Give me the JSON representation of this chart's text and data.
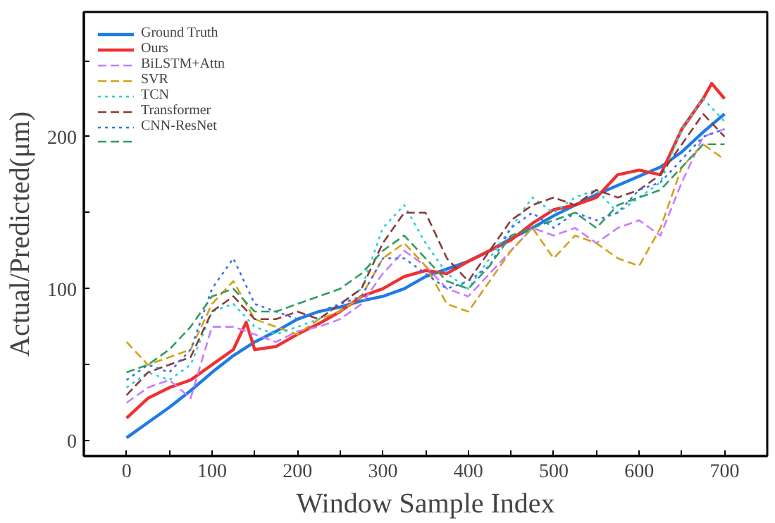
{
  "chart_data": {
    "type": "line",
    "xlabel": "Window Sample Index",
    "ylabel": "Actual/Predicted(μm)",
    "x": [
      0,
      25,
      50,
      75,
      100,
      125,
      150,
      175,
      200,
      225,
      250,
      275,
      300,
      325,
      350,
      375,
      400,
      425,
      450,
      475,
      500,
      525,
      550,
      575,
      600,
      625,
      650,
      675,
      700
    ],
    "xlim": [
      -50,
      750
    ],
    "ylim": [
      -10,
      282
    ],
    "xticks": [
      0,
      {
        "value": 50,
        "label": null
      },
      100,
      {
        "value": 150,
        "label": null
      },
      200,
      {
        "value": 250,
        "label": null
      },
      300,
      {
        "value": 350,
        "label": null
      },
      400,
      {
        "value": 450,
        "label": null
      },
      500,
      {
        "value": 550,
        "label": null
      },
      600,
      {
        "value": 650,
        "label": null
      },
      700
    ],
    "yticks": [
      0,
      {
        "value": 50,
        "label": null
      },
      100,
      {
        "value": 150,
        "label": null
      },
      200,
      {
        "value": 250,
        "label": null
      }
    ],
    "grid": false,
    "legend": "top left",
    "marker": "none",
    "series": [
      {
        "name": "Ground Truth",
        "color": "#1e7be6",
        "line_style": "solid",
        "values": [
          2,
          12,
          22,
          33,
          45,
          56,
          65,
          72,
          80,
          85,
          88,
          92,
          95,
          100,
          108,
          113,
          118,
          125,
          133,
          140,
          148,
          155,
          162,
          168,
          174,
          180,
          190,
          203,
          215
        ]
      },
      {
        "name": "Ours",
        "color": "#f03030",
        "line_style": "solid",
        "x": [
          0,
          25,
          50,
          75,
          100,
          125,
          140,
          150,
          175,
          200,
          225,
          250,
          275,
          300,
          325,
          350,
          375,
          400,
          425,
          450,
          475,
          500,
          525,
          550,
          575,
          600,
          625,
          650,
          675,
          685,
          700
        ],
        "values": [
          15,
          28,
          35,
          40,
          50,
          60,
          78,
          60,
          62,
          70,
          77,
          85,
          95,
          100,
          108,
          112,
          110,
          118,
          125,
          132,
          143,
          152,
          155,
          160,
          175,
          178,
          175,
          205,
          225,
          235,
          225
        ]
      },
      {
        "name": "BiLSTM+Attn",
        "color": "#c77dff",
        "line_style": "dashed",
        "values": [
          25,
          35,
          40,
          28,
          75,
          75,
          70,
          65,
          72,
          75,
          80,
          90,
          110,
          125,
          115,
          100,
          95,
          110,
          125,
          140,
          135,
          140,
          130,
          140,
          145,
          135,
          170,
          200,
          205
        ]
      },
      {
        "name": "SVR",
        "color": "#d4a017",
        "line_style": "dashed",
        "values": [
          65,
          50,
          55,
          60,
          90,
          105,
          80,
          75,
          70,
          80,
          85,
          95,
          120,
          130,
          115,
          90,
          85,
          105,
          125,
          140,
          120,
          135,
          130,
          120,
          115,
          140,
          180,
          195,
          185
        ]
      },
      {
        "name": "TCN",
        "color": "#22d3d3",
        "line_style": "dotted",
        "values": [
          35,
          45,
          40,
          50,
          85,
          90,
          75,
          70,
          75,
          80,
          90,
          100,
          140,
          155,
          130,
          110,
          100,
          120,
          140,
          160,
          150,
          160,
          165,
          150,
          160,
          170,
          205,
          225,
          210
        ]
      },
      {
        "name": "Transformer",
        "color": "#8b3a3a",
        "line_style": "dashed",
        "values": [
          30,
          45,
          50,
          55,
          85,
          95,
          80,
          80,
          85,
          80,
          90,
          100,
          130,
          150,
          150,
          120,
          105,
          125,
          145,
          155,
          160,
          155,
          165,
          160,
          165,
          175,
          195,
          215,
          200
        ]
      },
      {
        "name": "CNN-ResNet",
        "color": "#3b6ff0",
        "line_style": "dotted",
        "values": [
          40,
          50,
          45,
          60,
          100,
          120,
          90,
          85,
          80,
          85,
          90,
          95,
          120,
          120,
          110,
          100,
          105,
          115,
          140,
          150,
          140,
          150,
          145,
          150,
          165,
          170,
          185,
          200,
          205
        ]
      },
      {
        "color": "#2e9e5e",
        "line_style": "dashed",
        "values": [
          45,
          50,
          60,
          75,
          95,
          100,
          85,
          85,
          90,
          95,
          100,
          110,
          125,
          135,
          120,
          105,
          100,
          115,
          135,
          140,
          145,
          150,
          140,
          155,
          160,
          165,
          180,
          195,
          195
        ]
      }
    ]
  }
}
